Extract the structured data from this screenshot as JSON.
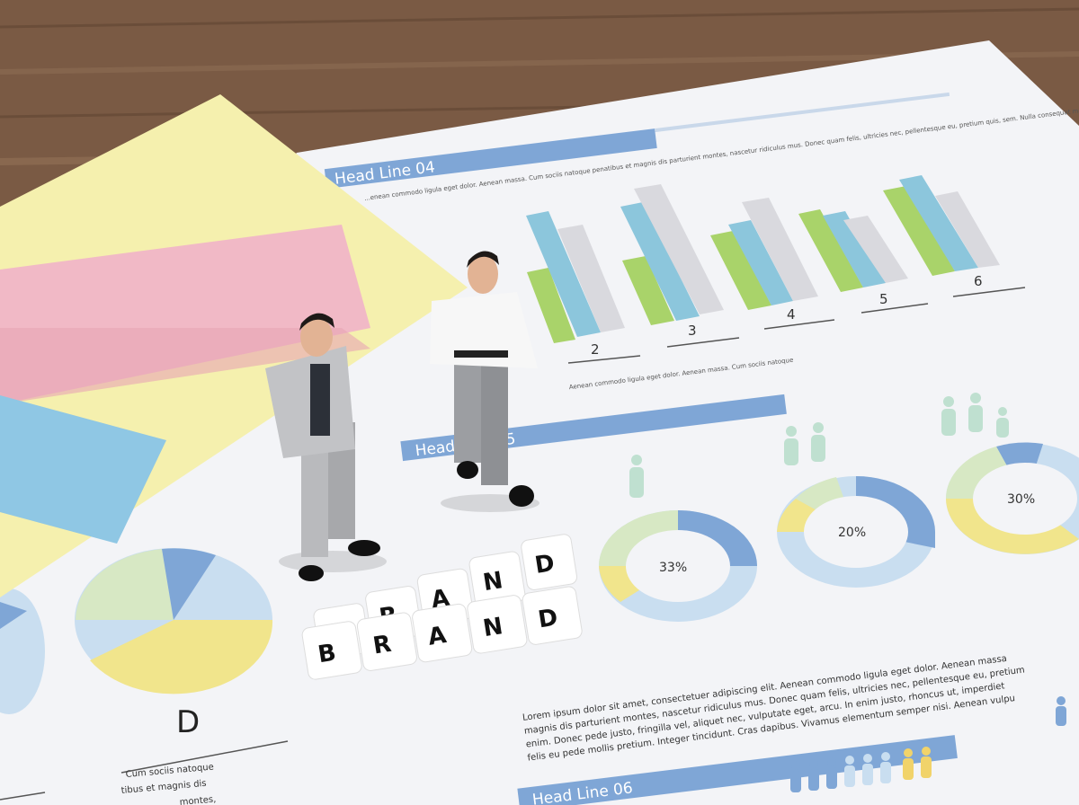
{
  "colors": {
    "wood": "#7a5a44",
    "paper": "#f4f4f6",
    "blue_band": "#7fa6d6",
    "green": "#a9d36a",
    "teal": "#8cc6dc",
    "gray": "#d9d9de",
    "yellow_note": "#f5f0ae",
    "pink_note": "#f1b9c6",
    "blue_note": "#8fc7e4"
  },
  "document": {
    "headlines": [
      "Head Line 04",
      "Head Line 05",
      "Head Line 06"
    ],
    "intro_text": "...enean commodo ligula eget dolor. Aenean massa. Cum sociis natoque penatibus et magnis dis parturient montes, nascetur ridiculus mus. Donec quam felis, ultricies nec, pellentesque eu, pretium quis, sem. Nulla consequat massa quis enim. Donec pede justo, fringilla vel, aliquet nec, vulputate",
    "bar_labels": [
      "2",
      "3",
      "4",
      "5",
      "6"
    ],
    "bar_caption": "Aenean commodo ligula eget dolor. Aenean massa. Cum sociis natoque",
    "donut_labels": [
      "33%",
      "20%",
      "30%"
    ],
    "pie_label": "D",
    "pie_caption_lines": [
      "Cum sociis natoque",
      "tibus et magnis dis",
      "montes,"
    ],
    "paragraph_lines": [
      "Lorem ipsum dolor sit amet, consectetuer adipiscing elit. Aenean commodo ligula eget dolor. Aenean massa",
      "magnis dis parturient montes, nascetur ridiculus mus. Donec quam felis, ultricies nec, pellentesque eu, pretium",
      "enim. Donec pede justo, fringilla vel, aliquet nec, vulputate eget, arcu. In enim justo, rhoncus ut, imperdiet",
      "felis eu pede mollis pretium. Integer tincidunt. Cras dapibus. Vivamus elementum semper nisi. Aenean vulpu"
    ]
  },
  "cubes": {
    "row1": [
      "B",
      "R",
      "A",
      "N",
      "D"
    ],
    "row2": [
      "B",
      "R",
      "A",
      "N",
      "D"
    ]
  }
}
